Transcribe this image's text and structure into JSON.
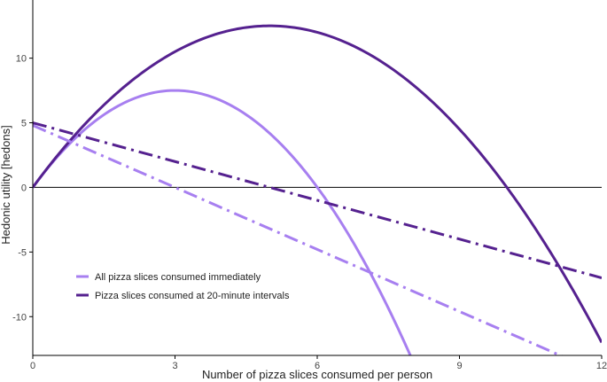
{
  "chart_data": {
    "type": "line",
    "xlabel": "Number of pizza slices consumed per person",
    "ylabel": "Hedonic utility [hedons]",
    "xlim": [
      0,
      12
    ],
    "ylim": [
      -13,
      14.5
    ],
    "x_ticks": [
      0,
      3,
      6,
      9,
      12
    ],
    "y_ticks": [
      -10,
      -5,
      0,
      5,
      10
    ],
    "x_tick_labels": [
      "0",
      "3",
      "6",
      "9",
      "12"
    ],
    "y_tick_labels": [
      "-10",
      "-5",
      "0",
      "5",
      "10"
    ],
    "grid": false,
    "zero_line": true,
    "legend": {
      "placement": "bottom-left",
      "entries": [
        {
          "label": "All pizza slices consumed immediately",
          "color": "#a77ff0"
        },
        {
          "label": "Pizza slices consumed at 20-minute intervals",
          "color": "#55218f"
        }
      ]
    },
    "series": [
      {
        "legend_index": 0,
        "style": "solid",
        "color": "#a77ff0",
        "x": [
          0,
          0.5,
          1,
          1.5,
          2,
          2.5,
          3,
          3.5,
          4,
          4.5,
          5,
          5.5,
          6,
          6.5,
          7,
          7.5,
          8,
          8.2
        ],
        "y": [
          0,
          2.29,
          4.17,
          5.63,
          6.67,
          7.29,
          7.5,
          7.29,
          6.67,
          5.63,
          4.17,
          2.29,
          0,
          -2.71,
          -5.83,
          -9.38,
          -13.33,
          -15.0
        ]
      },
      {
        "legend_index": 1,
        "style": "solid",
        "color": "#55218f",
        "x": [
          0,
          1,
          2,
          3,
          4,
          5,
          6,
          7,
          8,
          9,
          10,
          11,
          12
        ],
        "y": [
          0,
          4.5,
          8.0,
          10.5,
          12.0,
          12.5,
          12.0,
          10.5,
          8.0,
          4.5,
          0,
          -5.5,
          -12.0
        ]
      },
      {
        "legend_index": 0,
        "style": "dash-dot",
        "color": "#a77ff0",
        "x": [
          0,
          12
        ],
        "y": [
          4.8,
          -14.4
        ]
      },
      {
        "legend_index": 1,
        "style": "dash-dot",
        "color": "#55218f",
        "x": [
          0,
          12
        ],
        "y": [
          5.0,
          -7.0
        ]
      }
    ]
  }
}
